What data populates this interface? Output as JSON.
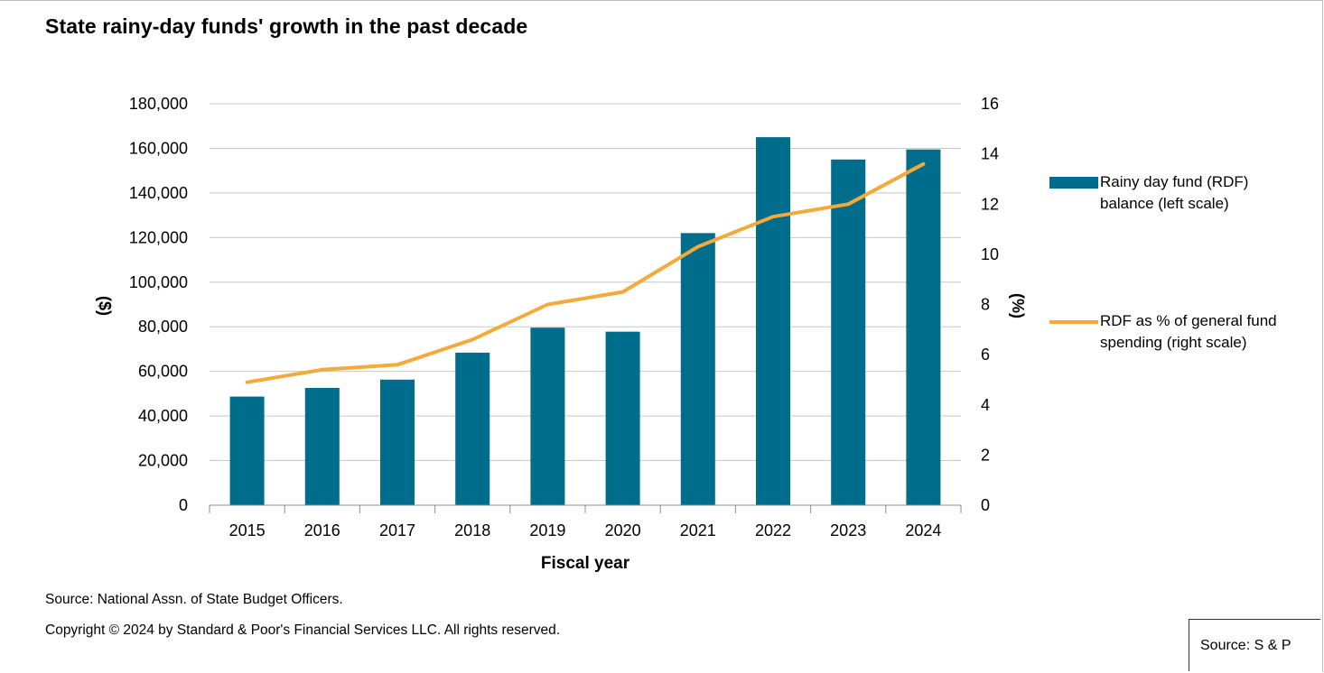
{
  "chart_data": {
    "type": "bar",
    "title": "State rainy-day funds' growth in the past decade",
    "xlabel": "Fiscal year",
    "ylabel": "($)",
    "y2label": "(%)",
    "categories": [
      "2015",
      "2016",
      "2017",
      "2018",
      "2019",
      "2020",
      "2021",
      "2022",
      "2023",
      "2024"
    ],
    "ylim": [
      0,
      180000
    ],
    "y2lim": [
      0,
      16
    ],
    "yticks": [
      "0",
      "20,000",
      "40,000",
      "60,000",
      "80,000",
      "100,000",
      "120,000",
      "140,000",
      "160,000",
      "180,000"
    ],
    "y2ticks": [
      "0",
      "2",
      "4",
      "6",
      "8",
      "10",
      "12",
      "14",
      "16"
    ],
    "grid": true,
    "legend_position": "right",
    "series": [
      {
        "name": "Rainy day fund (RDF) balance (left scale)",
        "kind": "bar",
        "axis": "left",
        "color": "#006d8c",
        "values": [
          48700,
          52600,
          56300,
          68400,
          79600,
          77800,
          122000,
          165000,
          155000,
          159500
        ]
      },
      {
        "name": "RDF as % of general fund spending (right scale)",
        "kind": "line",
        "axis": "right",
        "color": "#f4a93b",
        "values": [
          4.9,
          5.4,
          5.6,
          6.6,
          8.0,
          8.5,
          10.3,
          11.5,
          12.0,
          13.6
        ]
      }
    ]
  },
  "legend": {
    "bar_label": "Rainy day fund (RDF) balance (left scale)",
    "line_label": "RDF as % of general fund spending (right scale)"
  },
  "footnotes": {
    "source": "Source: National Assn. of State Budget Officers.",
    "copyright": "Copyright © 2024 by Standard & Poor's Financial Services LLC. All rights reserved."
  },
  "source_box": "Source: S & P"
}
